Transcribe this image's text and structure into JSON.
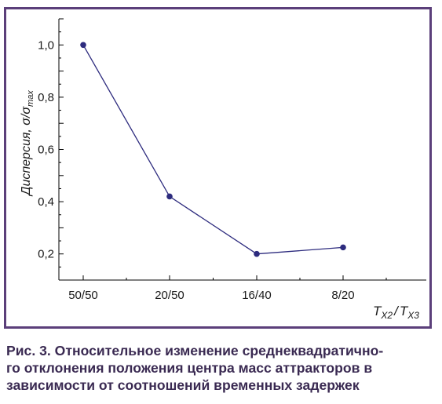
{
  "chart_data": {
    "type": "line",
    "categories": [
      "50/50",
      "20/50",
      "16/40",
      "8/20"
    ],
    "values": [
      1.0,
      0.42,
      0.2,
      0.225
    ],
    "y_ticks": [
      "0,2",
      "0,4",
      "0,6",
      "0,8",
      "1,0"
    ],
    "y_tick_values": [
      0.2,
      0.4,
      0.6,
      0.8,
      1.0
    ],
    "ylim": [
      0.1,
      1.1
    ],
    "ylabel_main": "Дисперсия, σ/σ",
    "ylabel_sub": "max",
    "xlabel_T1": "T",
    "xlabel_sub1": "X2",
    "xlabel_sep": "/",
    "xlabel_T2": "T",
    "xlabel_sub2": "X3",
    "grid": false,
    "line_color": "#2d2b7e",
    "marker_color": "#2d2b7e"
  },
  "caption": {
    "line1": "Рис. 3. Относительное изменение среднеквадратично-",
    "line2": "го отклонения положения центра масс аттракторов в",
    "line3": "зависимости от соотношений временных задержек"
  },
  "colors": {
    "frame": "#5b3f7a",
    "caption_text": "#3a2a52"
  }
}
